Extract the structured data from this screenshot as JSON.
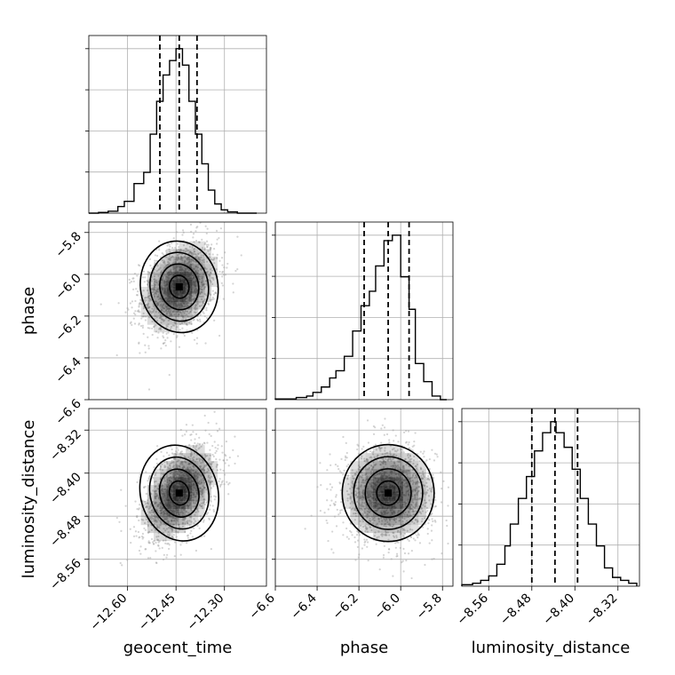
{
  "chart_data": {
    "type": "corner",
    "parameters": [
      "geocent_time",
      "phase",
      "luminosity_distance"
    ],
    "grid": true,
    "dashed_quantiles": "16%, 50%, 84%",
    "contour_levels": 3,
    "colors": {
      "line": "#000000",
      "grid": "#b0b0b0",
      "density": "#000000",
      "points": "#a0a0a0"
    },
    "axes": {
      "geocent_time": {
        "range": [
          -12.72,
          -12.17
        ],
        "ticks": [
          -12.6,
          -12.45,
          -12.3
        ],
        "tick_labels": [
          "−12.60",
          "−12.45",
          "−12.30"
        ]
      },
      "phase": {
        "range": [
          -6.6,
          -5.75
        ],
        "ticks": [
          -6.6,
          -6.4,
          -6.2,
          -6.0,
          -5.8
        ],
        "tick_labels": [
          "−6.6",
          "−6.4",
          "−6.2",
          "−6.0",
          "−5.8"
        ]
      },
      "luminosity_distance": {
        "range": [
          -8.61,
          -8.28
        ],
        "ticks": [
          -8.56,
          -8.48,
          -8.4,
          -8.32
        ],
        "tick_labels": [
          "−8.56",
          "−8.48",
          "−8.40",
          "−8.32"
        ]
      }
    },
    "marginals": [
      {
        "param": "geocent_time",
        "quantiles": [
          -12.5,
          -12.44,
          -12.385
        ],
        "bin_edges": [
          -12.72,
          -12.69,
          -12.66,
          -12.63,
          -12.61,
          -12.58,
          -12.55,
          -12.53,
          -12.51,
          -12.49,
          -12.47,
          -12.45,
          -12.43,
          -12.41,
          -12.39,
          -12.37,
          -12.35,
          -12.33,
          -12.31,
          -12.29,
          -12.26,
          -12.2
        ],
        "counts": [
          0,
          1,
          3,
          10,
          18,
          45,
          62,
          120,
          170,
          210,
          232,
          250,
          225,
          170,
          120,
          75,
          35,
          14,
          5,
          2,
          0
        ]
      },
      {
        "param": "phase",
        "quantiles": [
          -6.175,
          -6.06,
          -5.96
        ],
        "bin_edges": [
          -6.6,
          -6.5,
          -6.45,
          -6.42,
          -6.38,
          -6.34,
          -6.31,
          -6.27,
          -6.23,
          -6.19,
          -6.15,
          -6.12,
          -6.08,
          -6.04,
          -6.0,
          -5.96,
          -5.93,
          -5.89,
          -5.85,
          -5.81,
          -5.78
        ],
        "counts": [
          2,
          6,
          10,
          20,
          35,
          60,
          80,
          120,
          190,
          260,
          300,
          370,
          440,
          455,
          340,
          250,
          100,
          50,
          10,
          0
        ]
      },
      {
        "param": "luminosity_distance",
        "quantiles": [
          -8.48,
          -8.437,
          -8.395
        ],
        "bin_edges": [
          -8.61,
          -8.59,
          -8.575,
          -8.56,
          -8.545,
          -8.53,
          -8.52,
          -8.505,
          -8.49,
          -8.475,
          -8.46,
          -8.445,
          -8.435,
          -8.42,
          -8.405,
          -8.39,
          -8.375,
          -8.36,
          -8.345,
          -8.33,
          -8.315,
          -8.3,
          -8.285
        ],
        "counts": [
          2,
          4,
          8,
          14,
          30,
          55,
          85,
          120,
          150,
          185,
          210,
          225,
          210,
          190,
          160,
          120,
          85,
          55,
          25,
          12,
          8,
          4
        ]
      }
    ],
    "pairs": [
      {
        "x": "geocent_time",
        "y": "phase",
        "mean": [
          -12.44,
          -6.06
        ],
        "sigma": [
          0.06,
          0.11
        ],
        "correlation": 0.3
      },
      {
        "x": "geocent_time",
        "y": "luminosity_distance",
        "mean": [
          -12.44,
          -8.437
        ],
        "sigma": [
          0.06,
          0.045
        ],
        "correlation": 0.45
      },
      {
        "x": "phase",
        "y": "luminosity_distance",
        "mean": [
          -6.06,
          -8.437
        ],
        "sigma": [
          0.11,
          0.045
        ],
        "correlation": 0.0
      }
    ]
  }
}
